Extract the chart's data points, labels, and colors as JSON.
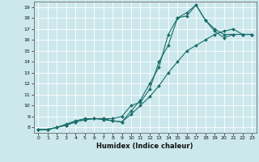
{
  "title": "",
  "xlabel": "Humidex (Indice chaleur)",
  "bg_color": "#cce8ec",
  "grid_color": "#ffffff",
  "line_color": "#1a6e6a",
  "xlim": [
    -0.5,
    23.5
  ],
  "ylim": [
    7.5,
    19.5
  ],
  "xticks": [
    0,
    1,
    2,
    3,
    4,
    5,
    6,
    7,
    8,
    9,
    10,
    11,
    12,
    13,
    14,
    15,
    16,
    17,
    18,
    19,
    20,
    21,
    22,
    23
  ],
  "yticks": [
    8,
    9,
    10,
    11,
    12,
    13,
    14,
    15,
    16,
    17,
    18,
    19
  ],
  "line1_x": [
    0,
    1,
    2,
    3,
    4,
    5,
    6,
    7,
    8,
    9,
    10,
    11,
    12,
    13,
    14,
    15,
    16,
    17,
    18,
    19,
    20,
    21,
    22,
    23
  ],
  "line1_y": [
    7.8,
    7.8,
    8.0,
    8.2,
    8.5,
    8.7,
    8.8,
    8.8,
    8.8,
    9.0,
    10.0,
    10.3,
    11.5,
    14.0,
    15.5,
    18.0,
    18.2,
    19.2,
    17.8,
    17.0,
    16.5,
    16.5,
    16.5,
    16.5
  ],
  "line2_x": [
    0,
    1,
    2,
    3,
    4,
    5,
    6,
    7,
    8,
    9,
    10,
    11,
    12,
    13,
    14,
    15,
    16,
    17,
    18,
    19,
    20,
    21,
    22,
    23
  ],
  "line2_y": [
    7.8,
    7.8,
    8.0,
    8.3,
    8.6,
    8.8,
    8.8,
    8.8,
    8.6,
    8.5,
    9.5,
    10.5,
    12.0,
    13.5,
    16.5,
    18.0,
    18.5,
    19.2,
    17.8,
    16.8,
    16.2,
    16.5,
    16.5,
    16.5
  ],
  "line3_x": [
    0,
    1,
    2,
    3,
    4,
    5,
    6,
    7,
    8,
    9,
    10,
    11,
    12,
    13,
    14,
    15,
    16,
    17,
    18,
    19,
    20,
    21,
    22,
    23
  ],
  "line3_y": [
    7.8,
    7.8,
    8.0,
    8.2,
    8.5,
    8.7,
    8.8,
    8.7,
    8.6,
    8.5,
    9.2,
    10.0,
    10.8,
    11.8,
    13.0,
    14.0,
    15.0,
    15.5,
    16.0,
    16.5,
    16.8,
    17.0,
    16.5,
    16.5
  ],
  "xlabel_fontsize": 6,
  "tick_fontsize": 4.5,
  "marker_size": 2.0,
  "linewidth": 0.8
}
